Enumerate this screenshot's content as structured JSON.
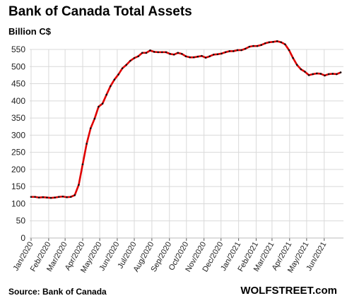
{
  "title": "Bank of Canada Total Assets",
  "unit_label": "Billion C$",
  "source": "Source: Bank of Canada",
  "brand": "WOLFSTREET.com",
  "colors": {
    "line": "#e00000",
    "marker": "#111111",
    "grid": "#d9d9d9"
  },
  "chart_data": {
    "type": "line",
    "title": "Bank of Canada Total Assets",
    "ylabel": "Billion C$",
    "xlabel": "",
    "ylim": [
      0,
      550
    ],
    "yticks": [
      0,
      50,
      100,
      150,
      200,
      250,
      300,
      350,
      400,
      450,
      500,
      550
    ],
    "grid": true,
    "legend": "none",
    "x_tick_labels": [
      "Jan/2020",
      "Feb/2020",
      "Mar/2020",
      "Apr/2020",
      "May/2020",
      "Jun/2020",
      "Jul/2020",
      "Aug/2020",
      "Sep/2020",
      "Oct/2020",
      "Nov/2020",
      "Dec/2020",
      "Jan/2021",
      "Feb/2021",
      "Mar/2021",
      "Apr/2021",
      "May/2021",
      "Jun/2021"
    ],
    "x_tick_weeks": [
      0,
      4.43,
      8.57,
      13,
      17.29,
      21.71,
      26,
      30.43,
      34.86,
      39.14,
      43.57,
      47.86,
      52.29,
      56.71,
      60.71,
      65.14,
      69.43,
      73.86
    ],
    "series": [
      {
        "name": "",
        "unit": "week",
        "values": [
          120,
          120,
          118,
          119,
          118,
          117,
          118,
          120,
          121,
          119,
          120,
          125,
          155,
          215,
          275,
          320,
          348,
          383,
          392,
          418,
          443,
          462,
          477,
          495,
          505,
          517,
          525,
          530,
          540,
          540,
          547,
          543,
          542,
          542,
          542,
          537,
          535,
          540,
          537,
          530,
          527,
          527,
          529,
          531,
          526,
          530,
          535,
          536,
          538,
          542,
          545,
          545,
          548,
          548,
          552,
          558,
          560,
          560,
          563,
          568,
          571,
          572,
          574,
          571,
          565,
          548,
          525,
          505,
          492,
          485,
          475,
          478,
          480,
          479,
          474,
          478,
          479,
          478,
          483
        ]
      }
    ]
  }
}
